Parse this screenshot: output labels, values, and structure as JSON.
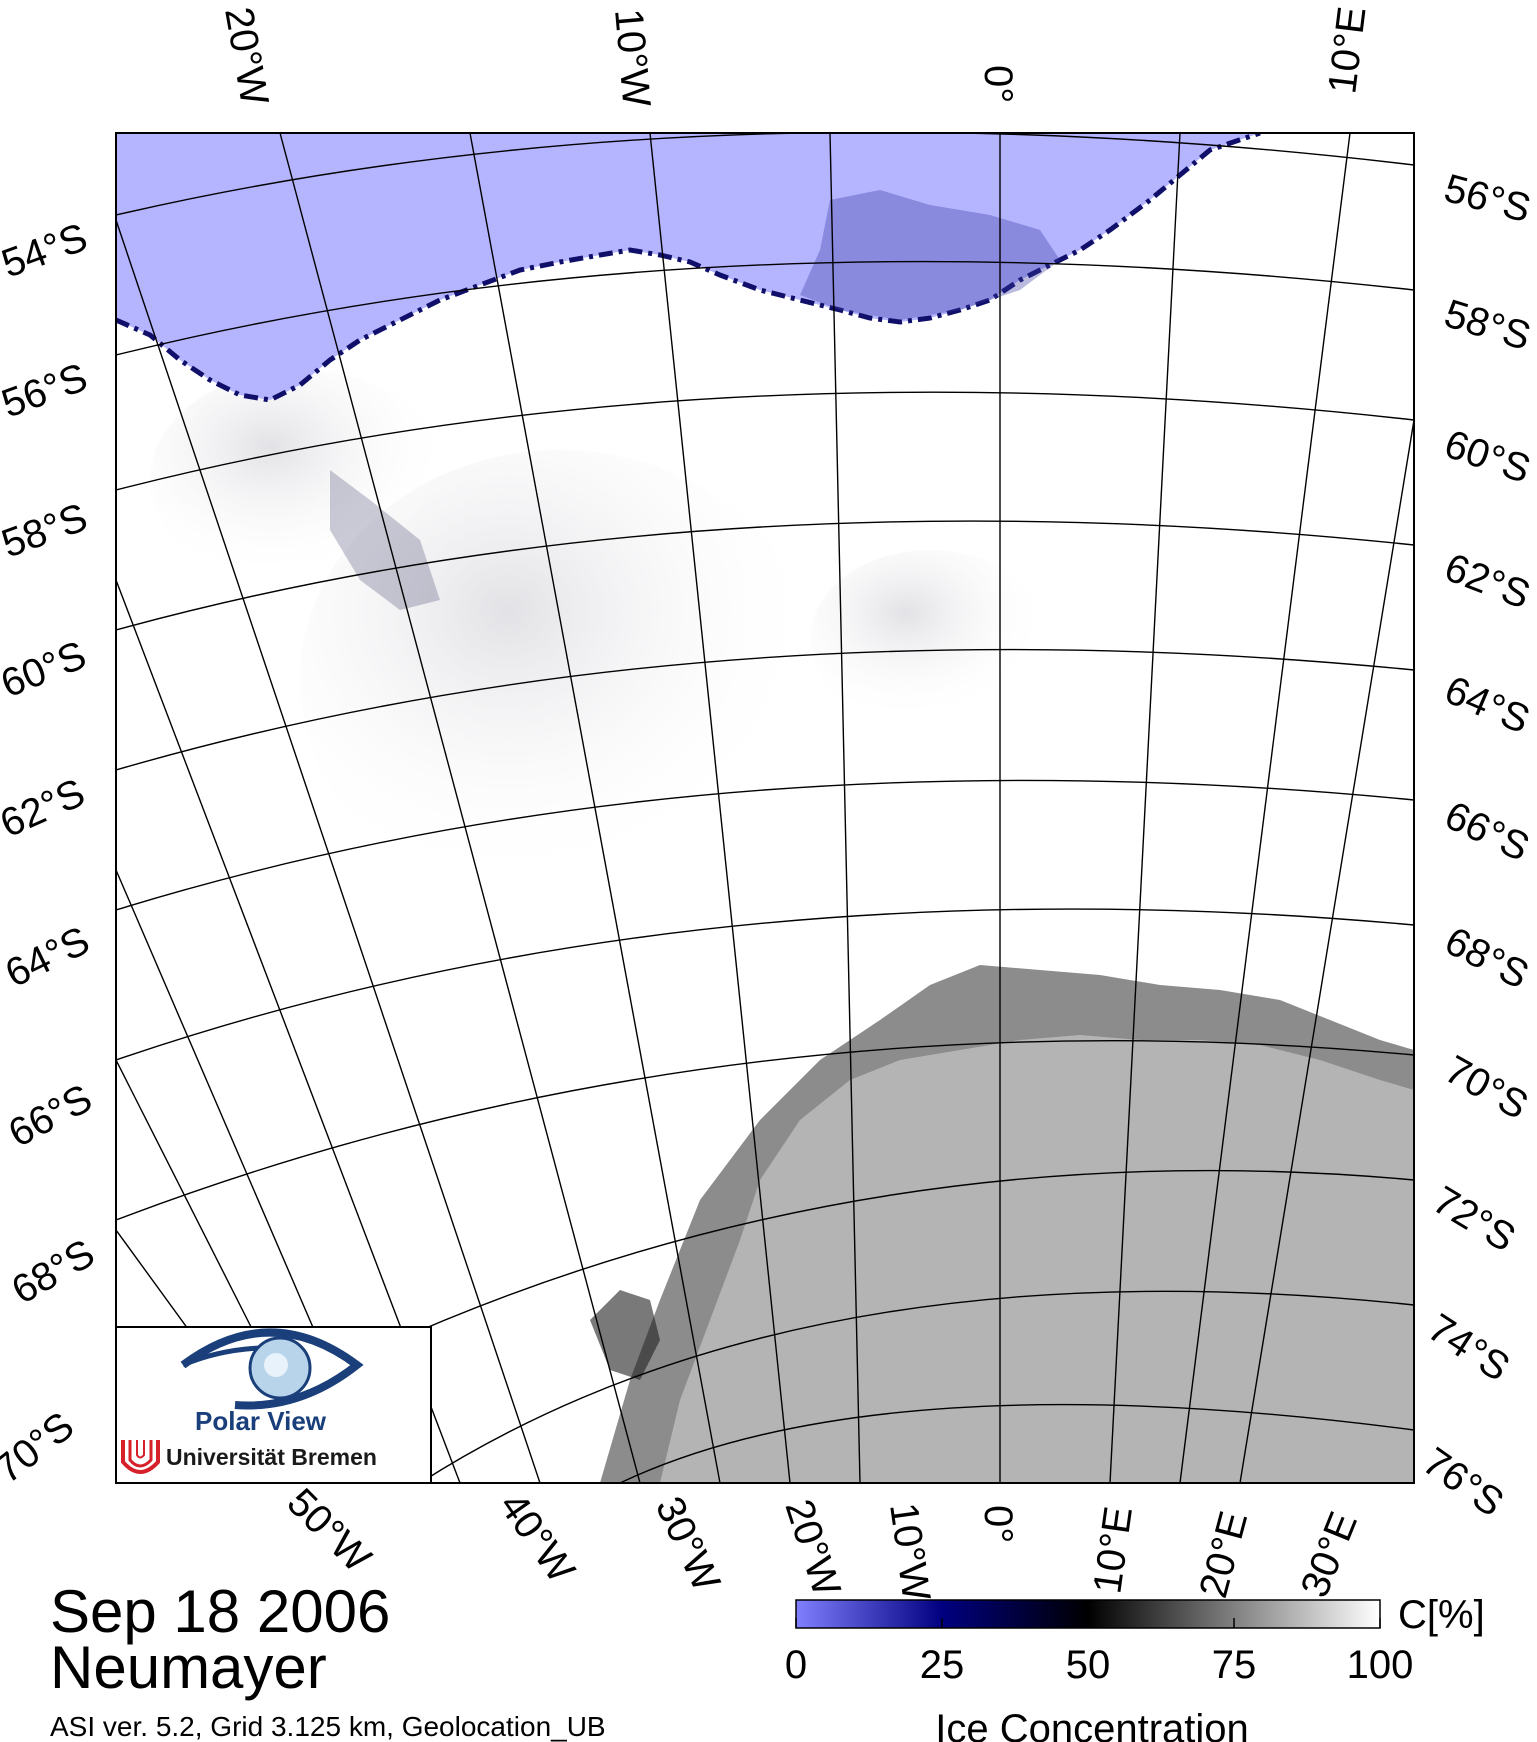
{
  "date": "Sep 18 2006",
  "station": "Neumayer",
  "meta": "ASI ver. 5.2,  Grid 3.125 km, Geolocation_UB",
  "logo": {
    "name": "Polar View",
    "institution": "Universität Bremen"
  },
  "colorbar": {
    "unit_label": "C[%]",
    "title": "Ice Concentration",
    "ticks": [
      "0",
      "25",
      "50",
      "75",
      "100"
    ],
    "stops": [
      {
        "value": 0,
        "color": "#8080ff"
      },
      {
        "value": 25,
        "color": "#000080"
      },
      {
        "value": 50,
        "color": "#000000"
      },
      {
        "value": 75,
        "color": "#808080"
      },
      {
        "value": 100,
        "color": "#ffffff"
      }
    ]
  },
  "colors": {
    "open_water": "#b4b4ff",
    "land": "#b4b4b4",
    "ice_shelf": "#8c8c8c",
    "sea_ice": "#ffffff",
    "grid": "#000000"
  },
  "longitude_labels_top": [
    "20°W",
    "10°W",
    "0°",
    "10°E"
  ],
  "longitude_labels_bottom": [
    "50°W",
    "40°W",
    "30°W",
    "20°W",
    "10°W",
    "0°",
    "10°E",
    "20°E",
    "30°E"
  ],
  "latitude_labels_left": [
    "54°S",
    "56°S",
    "58°S",
    "60°S",
    "62°S",
    "64°S",
    "66°S",
    "68°S",
    "70°S"
  ],
  "latitude_labels_right": [
    "56°S",
    "58°S",
    "60°S",
    "62°S",
    "64°S",
    "66°S",
    "68°S",
    "70°S",
    "72°S",
    "74°S",
    "76°S"
  ]
}
